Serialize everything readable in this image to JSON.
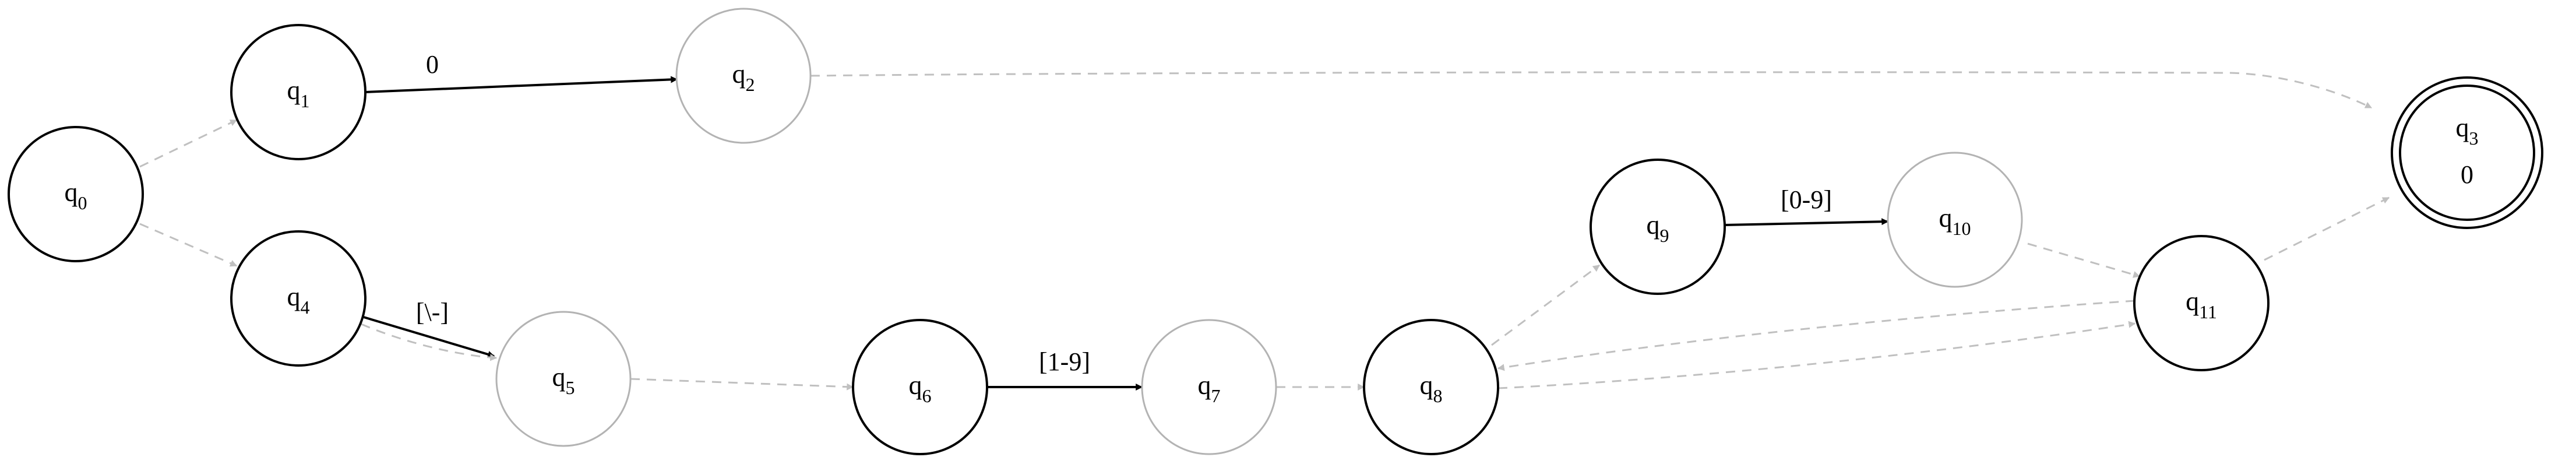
{
  "states": [
    {
      "id": "q0",
      "base": "q",
      "sub": "0",
      "style": "solid"
    },
    {
      "id": "q1",
      "base": "q",
      "sub": "1",
      "style": "solid"
    },
    {
      "id": "q2",
      "base": "q",
      "sub": "2",
      "style": "faded"
    },
    {
      "id": "q3",
      "base": "q",
      "sub": "3",
      "style": "accepting",
      "output": "0"
    },
    {
      "id": "q4",
      "base": "q",
      "sub": "4",
      "style": "solid"
    },
    {
      "id": "q5",
      "base": "q",
      "sub": "5",
      "style": "faded"
    },
    {
      "id": "q6",
      "base": "q",
      "sub": "6",
      "style": "solid"
    },
    {
      "id": "q7",
      "base": "q",
      "sub": "7",
      "style": "faded"
    },
    {
      "id": "q8",
      "base": "q",
      "sub": "8",
      "style": "solid"
    },
    {
      "id": "q9",
      "base": "q",
      "sub": "9",
      "style": "solid"
    },
    {
      "id": "q10",
      "base": "q",
      "sub": "10",
      "style": "faded"
    },
    {
      "id": "q11",
      "base": "q",
      "sub": "11",
      "style": "solid"
    }
  ],
  "transitions": [
    {
      "id": "t-q0-q1",
      "from": "q0",
      "to": "q1",
      "label": "",
      "kind": "epsilon"
    },
    {
      "id": "t-q0-q4",
      "from": "q0",
      "to": "q4",
      "label": "",
      "kind": "epsilon"
    },
    {
      "id": "t-q1-q2",
      "from": "q1",
      "to": "q2",
      "label": "0",
      "kind": "symbol"
    },
    {
      "id": "t-q2-q3",
      "from": "q2",
      "to": "q3",
      "label": "",
      "kind": "epsilon"
    },
    {
      "id": "t-q4-q5-sym",
      "from": "q4",
      "to": "q5",
      "label": "[\\-]",
      "kind": "symbol"
    },
    {
      "id": "t-q4-q5-eps",
      "from": "q4",
      "to": "q5",
      "label": "",
      "kind": "epsilon"
    },
    {
      "id": "t-q5-q6",
      "from": "q5",
      "to": "q6",
      "label": "",
      "kind": "epsilon"
    },
    {
      "id": "t-q6-q7",
      "from": "q6",
      "to": "q7",
      "label": "[1-9]",
      "kind": "symbol"
    },
    {
      "id": "t-q7-q8",
      "from": "q7",
      "to": "q8",
      "label": "",
      "kind": "epsilon"
    },
    {
      "id": "t-q8-q9",
      "from": "q8",
      "to": "q9",
      "label": "",
      "kind": "epsilon"
    },
    {
      "id": "t-q9-q10",
      "from": "q9",
      "to": "q10",
      "label": "[0-9]",
      "kind": "symbol"
    },
    {
      "id": "t-q10-q11",
      "from": "q10",
      "to": "q11",
      "label": "",
      "kind": "epsilon"
    },
    {
      "id": "t-q11-q8",
      "from": "q11",
      "to": "q8",
      "label": "",
      "kind": "epsilon"
    },
    {
      "id": "t-q8-q11",
      "from": "q8",
      "to": "q11",
      "label": "",
      "kind": "epsilon"
    },
    {
      "id": "t-q11-q3",
      "from": "q11",
      "to": "q3",
      "label": "",
      "kind": "epsilon"
    }
  ],
  "colors": {
    "solid_stroke": "#000000",
    "faded_stroke": "#b3b3b3",
    "epsilon_edge": "#c0c0c0",
    "symbol_edge": "#000000"
  }
}
